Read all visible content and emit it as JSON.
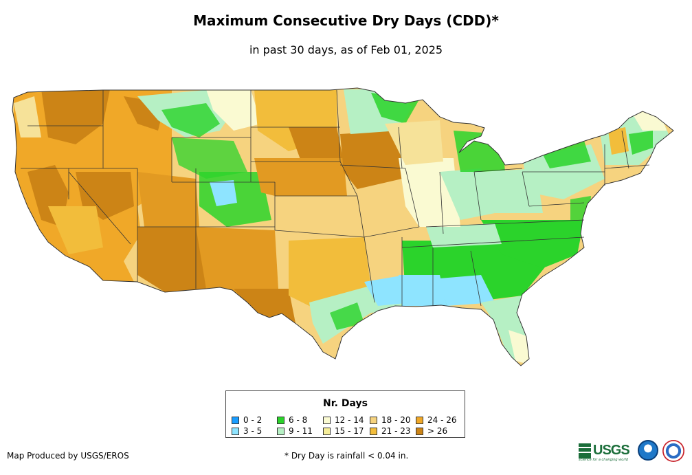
{
  "title": "Maximum Consecutive Dry Days (CDD)*",
  "subtitle": "in past 30 days, as of Feb 01, 2025",
  "legend": {
    "title": "Nr. Days",
    "items": [
      {
        "label": "0 - 2",
        "color": "#1a9dff"
      },
      {
        "label": "3 - 5",
        "color": "#8ee4ff"
      },
      {
        "label": "6 - 8",
        "color": "#2bd32b"
      },
      {
        "label": "9 - 11",
        "color": "#b6f0c4"
      },
      {
        "label": "12 - 14",
        "color": "#fafad2"
      },
      {
        "label": "15 - 17",
        "color": "#f6ee99"
      },
      {
        "label": "18 - 20",
        "color": "#f6d37f"
      },
      {
        "label": "21 - 23",
        "color": "#f2bd3b"
      },
      {
        "label": "24 - 26",
        "color": "#f0a828"
      },
      {
        "label": "> 26",
        "color": "#cc8416"
      }
    ]
  },
  "footer": {
    "credit": "Map Produced by USGS/EROS",
    "note": "* Dry Day is rainfall < 0.04 in."
  },
  "logos": {
    "usgs_text": "USGS",
    "usgs_tagline": "science for a changing world"
  }
}
